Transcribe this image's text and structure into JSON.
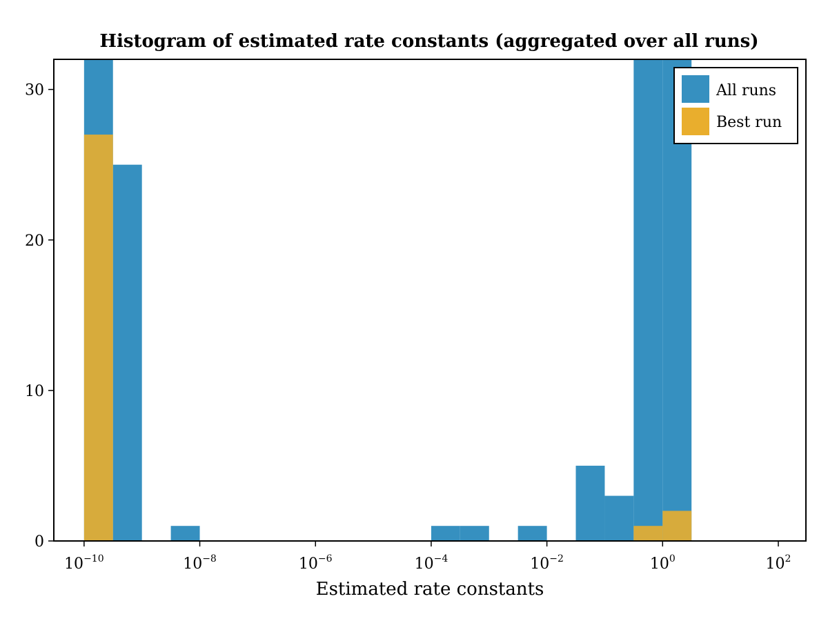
{
  "chart_data": {
    "type": "bar",
    "title": "Histogram of estimated rate constants (aggregated over all runs)",
    "xlabel": "Estimated rate constants",
    "ylabel": "",
    "x_scale": "log10",
    "xlim": [
      3e-11,
      300
    ],
    "ylim": [
      0,
      32
    ],
    "grid": false,
    "legend_position": "top-right",
    "x_ticks": [
      {
        "base": "10",
        "exp": "−10",
        "value": 1e-10
      },
      {
        "base": "10",
        "exp": "−8",
        "value": 1e-08
      },
      {
        "base": "10",
        "exp": "−6",
        "value": 1e-06
      },
      {
        "base": "10",
        "exp": "−4",
        "value": 0.0001
      },
      {
        "base": "10",
        "exp": "−2",
        "value": 0.01
      },
      {
        "base": "10",
        "exp": "0",
        "value": 1
      },
      {
        "base": "10",
        "exp": "2",
        "value": 100
      }
    ],
    "y_ticks": [
      {
        "label": "0",
        "value": 0
      },
      {
        "label": "10",
        "value": 10
      },
      {
        "label": "20",
        "value": 20
      },
      {
        "label": "30",
        "value": 30
      }
    ],
    "series": [
      {
        "name": "All runs",
        "color": "#3690c0",
        "bins": [
          {
            "x0": 1e-10,
            "x1": 3.16e-10,
            "count": 33
          },
          {
            "x0": 3.16e-10,
            "x1": 1e-09,
            "count": 25
          },
          {
            "x0": 3.16e-09,
            "x1": 1e-08,
            "count": 1
          },
          {
            "x0": 0.0001,
            "x1": 0.000316,
            "count": 1
          },
          {
            "x0": 0.000316,
            "x1": 0.001,
            "count": 1
          },
          {
            "x0": 0.00316,
            "x1": 0.01,
            "count": 1
          },
          {
            "x0": 0.0316,
            "x1": 0.1,
            "count": 5
          },
          {
            "x0": 0.1,
            "x1": 0.316,
            "count": 3
          },
          {
            "x0": 0.316,
            "x1": 1,
            "count": 33
          },
          {
            "x0": 1,
            "x1": 3.16,
            "count": 33
          }
        ]
      },
      {
        "name": "Best run",
        "color": "#e9ae2d",
        "bins": [
          {
            "x0": 1e-10,
            "x1": 3.16e-10,
            "count": 27
          },
          {
            "x0": 0.316,
            "x1": 1,
            "count": 1
          },
          {
            "x0": 1,
            "x1": 3.16,
            "count": 2
          }
        ]
      }
    ]
  }
}
